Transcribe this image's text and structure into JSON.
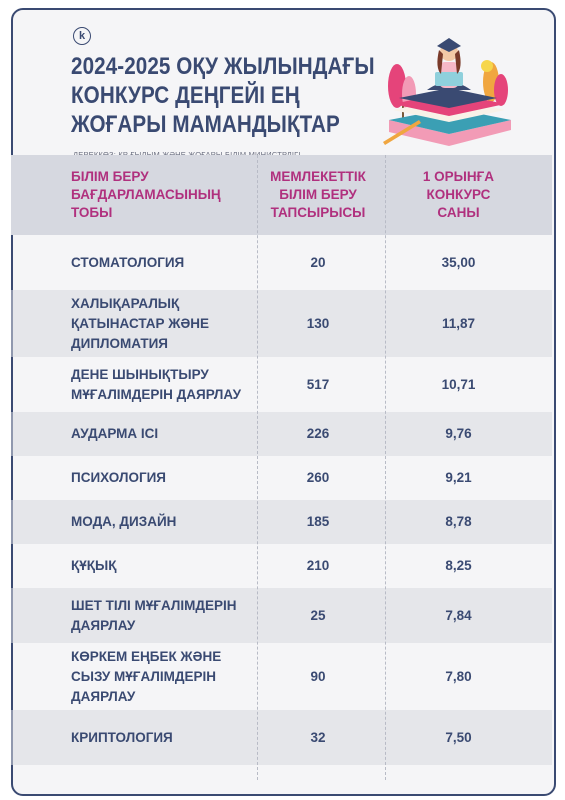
{
  "header": {
    "logo_letter": "k",
    "title_lines": [
      "2024-2025 ОҚУ ЖЫЛЫНДАҒЫ",
      "КОНКУРС ДЕҢГЕЙІ ЕҢ",
      "ЖОҒАРЫ МАМАНДЫҚТАР"
    ],
    "source": "ДЕРЕККӨЗ: ҚР ҒЫЛЫМ ЖӘНЕ ЖОҒАРЫ БІЛІМ МИНИСТРЛІГІ"
  },
  "table": {
    "columns": [
      [
        "БІЛІМ БЕРУ",
        "БАҒДАРЛАМАСЫНЫҢ",
        "ТОБЫ"
      ],
      [
        "МЕМЛЕКЕТТІК",
        "БІЛІМ БЕРУ",
        "ТАПСЫРЫСЫ"
      ],
      [
        "1 ОРЫНҒА",
        "КОНКУРС",
        "САНЫ"
      ]
    ],
    "rows": [
      {
        "name": [
          "СТОМАТОЛОГИЯ"
        ],
        "grants": "20",
        "competition": "35,00"
      },
      {
        "name": [
          "ХАЛЫҚАРАЛЫҚ",
          "ҚАТЫНАСТАР ЖӘНЕ",
          "ДИПЛОМАТИЯ"
        ],
        "grants": "130",
        "competition": "11,87"
      },
      {
        "name": [
          "ДЕНЕ ШЫНЫҚТЫРУ",
          "МҰҒАЛІМДЕРІН ДАЯРЛАУ"
        ],
        "grants": "517",
        "competition": "10,71"
      },
      {
        "name": [
          "АУДАРМА ІСІ"
        ],
        "grants": "226",
        "competition": "9,76"
      },
      {
        "name": [
          "ПСИХОЛОГИЯ"
        ],
        "grants": "260",
        "competition": "9,21"
      },
      {
        "name": [
          "МОДА, ДИЗАЙН"
        ],
        "grants": "185",
        "competition": "8,78"
      },
      {
        "name": [
          "ҚҰҚЫҚ"
        ],
        "grants": "210",
        "competition": "8,25"
      },
      {
        "name": [
          "ШЕТ ТІЛІ МҰҒАЛІМДЕРІН",
          "ДАЯРЛАУ"
        ],
        "grants": "25",
        "competition": "7,84"
      },
      {
        "name": [
          "КӨРКЕМ ЕҢБЕК ЖӘНЕ",
          "СЫЗУ МҰҒАЛІМДЕРІН",
          "ДАЯРЛАУ"
        ],
        "grants": "90",
        "competition": "7,80"
      },
      {
        "name": [
          "КРИПТОЛОГИЯ"
        ],
        "grants": "32",
        "competition": "7,50"
      }
    ]
  },
  "colors": {
    "navy": "#3a4a72",
    "magenta": "#b0307e"
  },
  "icons": [
    "logo-k-icon",
    "student-on-books-illustration"
  ]
}
